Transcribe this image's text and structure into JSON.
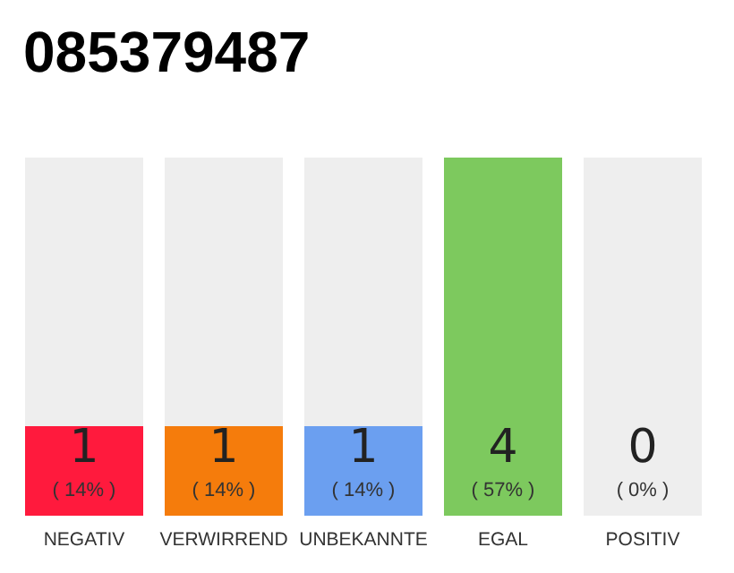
{
  "chart_data": {
    "type": "bar",
    "title": "085379487",
    "categories": [
      "NEGATIV",
      "VERWIRREND",
      "UNBEKANNTE",
      "EGAL",
      "POSITIV"
    ],
    "values": [
      1,
      1,
      1,
      4,
      0
    ],
    "colors": [
      "#ff1a3d",
      "#f57c0c",
      "#6b9ff0",
      "#7dc95e",
      null
    ],
    "value_labels": [
      "1\n( 14% )",
      "1\n( 14% )",
      "1\n( 14% )",
      "4\n( 57% )",
      "0\n( 0% )"
    ]
  }
}
